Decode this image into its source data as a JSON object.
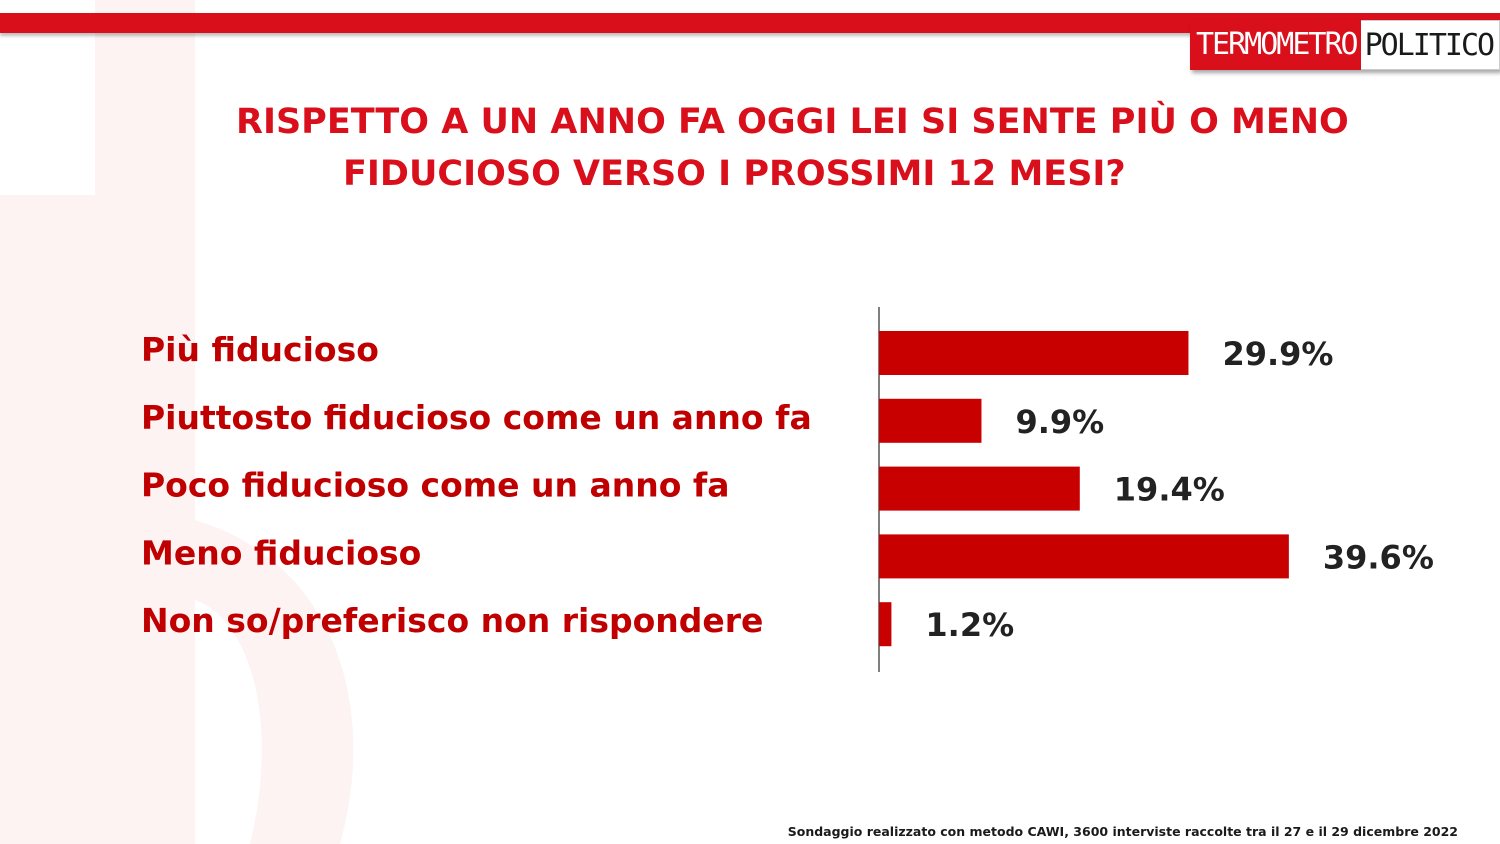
{
  "brand": {
    "logo_left": "TERMOMETRO",
    "logo_right": "POLITICO",
    "accent_color": "#d90f1b"
  },
  "title": {
    "line1": "RISPETTO A UN ANNO FA OGGI LEI SI SENTE PIÙ O MENO",
    "line2": "FIDUCIOSO VERSO I PROSSIMI 12 MESI?"
  },
  "chart_data": {
    "type": "bar",
    "orientation": "horizontal",
    "categories": [
      "Più fiducioso",
      "Piuttosto fiducioso come un anno fa",
      "Poco fiducioso come un anno fa",
      "Meno fiducioso",
      "Non so/preferisco non rispondere"
    ],
    "values": [
      29.9,
      9.9,
      19.4,
      39.6,
      1.2
    ],
    "value_labels": [
      "29.9%",
      "9.9%",
      "19.4%",
      "39.6%",
      "1.2%"
    ],
    "bar_color": "#c90000",
    "xlim": [
      0,
      40
    ],
    "grid": false,
    "legend": "none"
  },
  "footnote": "Sondaggio realizzato con metodo CAWI, 3600 interviste raccolte tra il 27 e il 29 dicembre 2022"
}
